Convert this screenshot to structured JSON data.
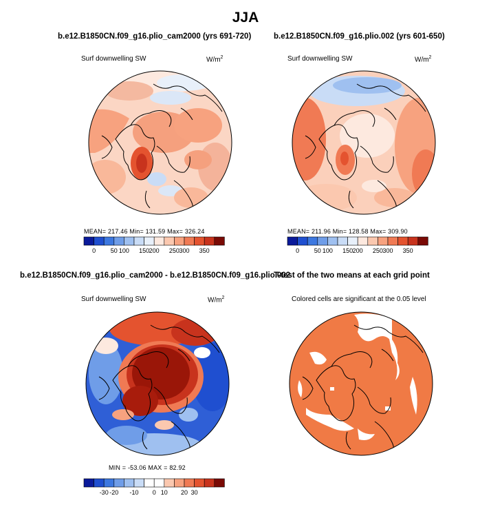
{
  "figure_title": "JJA",
  "panels": [
    {
      "id": "case1",
      "title": "b.e12.B1850CN.f09_g16.plio_cam2000 (yrs 691-720)",
      "variable": "Surf downwelling SW",
      "units_base": "W/m",
      "units_exp": "2",
      "stats": "MEAN= 217.46  Min= 131.59  Max= 326.24",
      "colorbar_ticks": [
        "0",
        "50",
        "100",
        "150",
        "200",
        "250",
        "300",
        "350"
      ],
      "colorbar_colors": [
        "#0a1a9a",
        "#1f4fd0",
        "#3d78e0",
        "#6f9de8",
        "#9fc0f0",
        "#c9dcf6",
        "#e8f0fa",
        "#fde9df",
        "#fbc8af",
        "#f7a27f",
        "#f07a54",
        "#e4532f",
        "#c8331d",
        "#7a0a05"
      ]
    },
    {
      "id": "case2",
      "title": "b.e12.B1850CN.f09_g16.plio.002 (yrs 601-650)",
      "variable": "Surf downwelling SW",
      "units_base": "W/m",
      "units_exp": "2",
      "stats": "MEAN= 211.96  Min= 128.58  Max= 309.90",
      "colorbar_ticks": [
        "0",
        "50",
        "100",
        "150",
        "200",
        "250",
        "300",
        "350"
      ],
      "colorbar_colors": [
        "#0a1a9a",
        "#1f4fd0",
        "#3d78e0",
        "#6f9de8",
        "#9fc0f0",
        "#c9dcf6",
        "#e8f0fa",
        "#fde9df",
        "#fbc8af",
        "#f7a27f",
        "#f07a54",
        "#e4532f",
        "#c8331d",
        "#7a0a05"
      ]
    },
    {
      "id": "diff",
      "title": "b.e12.B1850CN.f09_g16.plio_cam2000 - b.e12.B1850CN.f09_g16.plio.002",
      "variable": "Surf downwelling SW",
      "units_base": "W/m",
      "units_exp": "2",
      "stats": "MIN = -53.06  MAX =  82.92",
      "colorbar_ticks": [
        "-30",
        "-20",
        "-10",
        "0",
        "10",
        "20",
        "30"
      ],
      "colorbar_colors": [
        "#0a1a9a",
        "#1f4fd0",
        "#3d78e0",
        "#6f9de8",
        "#9fc0f0",
        "#c9dcf6",
        "#ffffff",
        "#ffffff",
        "#fbc8af",
        "#f7a27f",
        "#f07a54",
        "#e4532f",
        "#c8331d",
        "#7a0a05"
      ]
    },
    {
      "id": "ttest",
      "title": "T-test of the two means at each grid point",
      "subtitle": "Colored cells are significant at the 0.05 level",
      "significant_color": "#f07a45"
    }
  ]
}
